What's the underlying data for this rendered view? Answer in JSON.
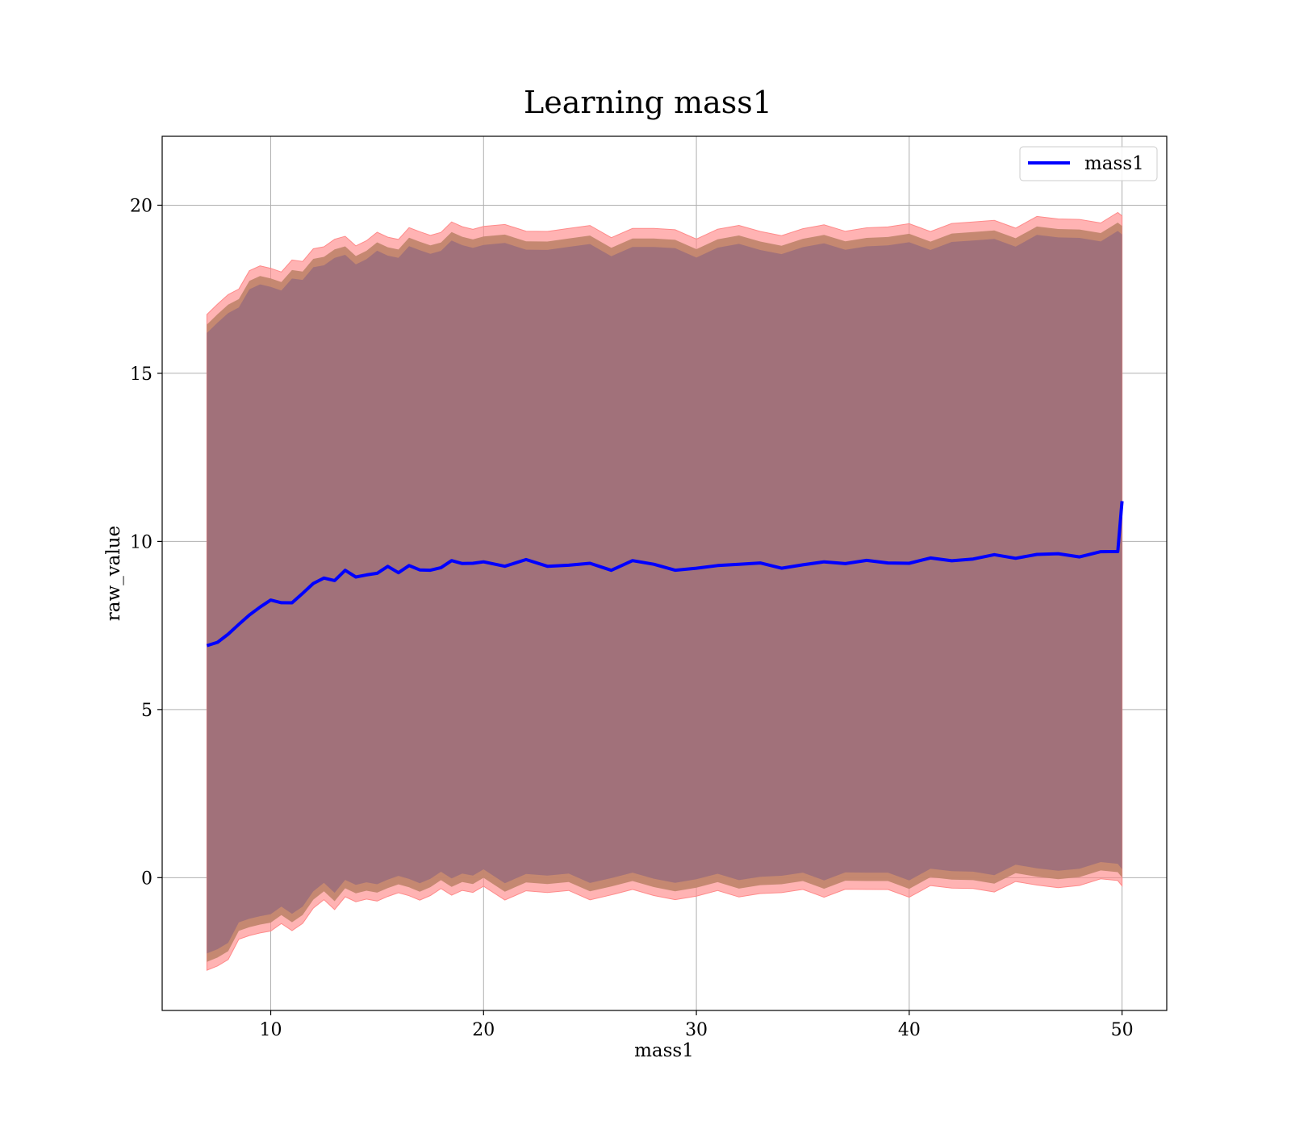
{
  "chart_data": {
    "type": "line",
    "title": "Learning mass1",
    "xlabel": "mass1",
    "ylabel": "raw_value",
    "xlim": [
      4.9,
      52.1
    ],
    "ylim": [
      -3.95,
      22.05
    ],
    "xticks": [
      10,
      20,
      30,
      40,
      50
    ],
    "yticks": [
      0,
      5,
      10,
      15,
      20
    ],
    "grid": true,
    "legend_position": "top-right",
    "colors": {
      "line": "#0000ff",
      "band_outer": "#ff8a8a",
      "band_middle": "#c2866e",
      "band_inner": "#a1717a"
    },
    "series": [
      {
        "name": "mass1",
        "x": [
          7.0,
          7.5,
          8.0,
          8.5,
          9.0,
          9.5,
          10.0,
          10.5,
          11.0,
          11.5,
          12.0,
          12.5,
          13.0,
          13.5,
          14.0,
          14.5,
          15.0,
          15.5,
          16.0,
          16.5,
          17.0,
          17.5,
          18.0,
          18.5,
          19.0,
          19.5,
          20.0,
          21.0,
          22.0,
          23.0,
          24.0,
          25.0,
          26.0,
          27.0,
          28.0,
          29.0,
          30.0,
          31.0,
          32.0,
          33.0,
          34.0,
          35.0,
          36.0,
          37.0,
          38.0,
          39.0,
          40.0,
          41.0,
          42.0,
          43.0,
          44.0,
          45.0,
          46.0,
          47.0,
          48.0,
          49.0,
          49.8,
          50.0
        ],
        "y": [
          6.9,
          7.0,
          7.3,
          7.5,
          7.8,
          8.1,
          8.2,
          8.2,
          8.2,
          8.4,
          8.8,
          8.9,
          8.8,
          9.2,
          8.9,
          9.0,
          9.1,
          9.2,
          9.1,
          9.3,
          9.1,
          9.2,
          9.2,
          9.4,
          9.4,
          9.3,
          9.4,
          9.3,
          9.4,
          9.3,
          9.3,
          9.3,
          9.2,
          9.4,
          9.3,
          9.2,
          9.15,
          9.3,
          9.35,
          9.3,
          9.25,
          9.3,
          9.35,
          9.4,
          9.4,
          9.35,
          9.4,
          9.45,
          9.45,
          9.5,
          9.55,
          9.55,
          9.6,
          9.6,
          9.6,
          9.65,
          9.7,
          11.2
        ],
        "lower": [
          -2.3,
          -2.1,
          -1.8,
          -1.5,
          -1.2,
          -1.1,
          -1.0,
          -1.05,
          -1.0,
          -0.8,
          -0.4,
          -0.3,
          -0.35,
          0.0,
          -0.3,
          -0.2,
          -0.1,
          0.0,
          -0.1,
          0.0,
          -0.1,
          0.0,
          0.0,
          0.1,
          0.15,
          0.05,
          0.1,
          0.0,
          0.1,
          0.0,
          0.05,
          0.0,
          -0.05,
          0.05,
          0.0,
          -0.05,
          -0.1,
          0.0,
          0.05,
          0.05,
          0.0,
          0.05,
          0.1,
          0.1,
          0.1,
          0.1,
          0.1,
          0.15,
          0.15,
          0.2,
          0.2,
          0.25,
          0.25,
          0.3,
          0.3,
          0.35,
          0.4,
          0.4
        ],
        "upper": [
          16.2,
          16.4,
          16.8,
          17.1,
          17.4,
          17.6,
          17.6,
          17.6,
          17.65,
          17.8,
          18.2,
          18.3,
          18.25,
          18.6,
          18.3,
          18.4,
          18.5,
          18.6,
          18.5,
          18.7,
          18.6,
          18.65,
          18.7,
          18.8,
          18.85,
          18.8,
          18.85,
          18.7,
          18.8,
          18.7,
          18.75,
          18.7,
          18.65,
          18.75,
          18.7,
          18.65,
          18.6,
          18.7,
          18.75,
          18.7,
          18.65,
          18.7,
          18.75,
          18.8,
          18.8,
          18.75,
          18.8,
          18.85,
          18.85,
          18.9,
          18.95,
          18.95,
          19.0,
          19.0,
          19.05,
          19.05,
          19.1,
          19.1
        ]
      }
    ]
  }
}
